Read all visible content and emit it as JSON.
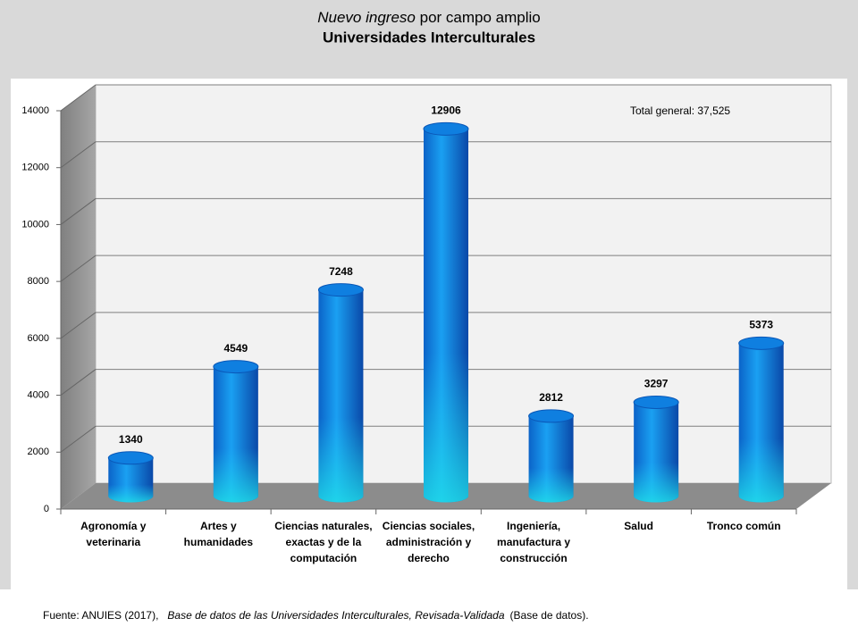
{
  "chart_data": {
    "type": "cylinder",
    "title": [
      "Nuevo ingreso",
      "por campo amplio"
    ],
    "subtitle": "Universidades Interculturales",
    "annotation": "Total general: 37,525",
    "source": [
      "Fuente: ANUIES (2017),",
      "Base de datos de las Universidades Interculturales, Revisada-Validada",
      "(Base de datos)."
    ],
    "categories": [
      "Agronomía y veterinaria",
      "Artes y humanidades",
      "Ciencias naturales, exactas y de la computación",
      "Ciencias sociales, administración y derecho",
      "Ingeniería, manufactura y construcción",
      "Salud",
      "Tronco común"
    ],
    "values": [
      1340,
      4549,
      7248,
      12906,
      2812,
      3297,
      5373
    ],
    "color": "#0f7fe0",
    "ylim": [
      0,
      14000
    ],
    "yticks": [
      0,
      2000,
      4000,
      6000,
      8000,
      10000,
      12000,
      14000
    ],
    "grid": true
  }
}
